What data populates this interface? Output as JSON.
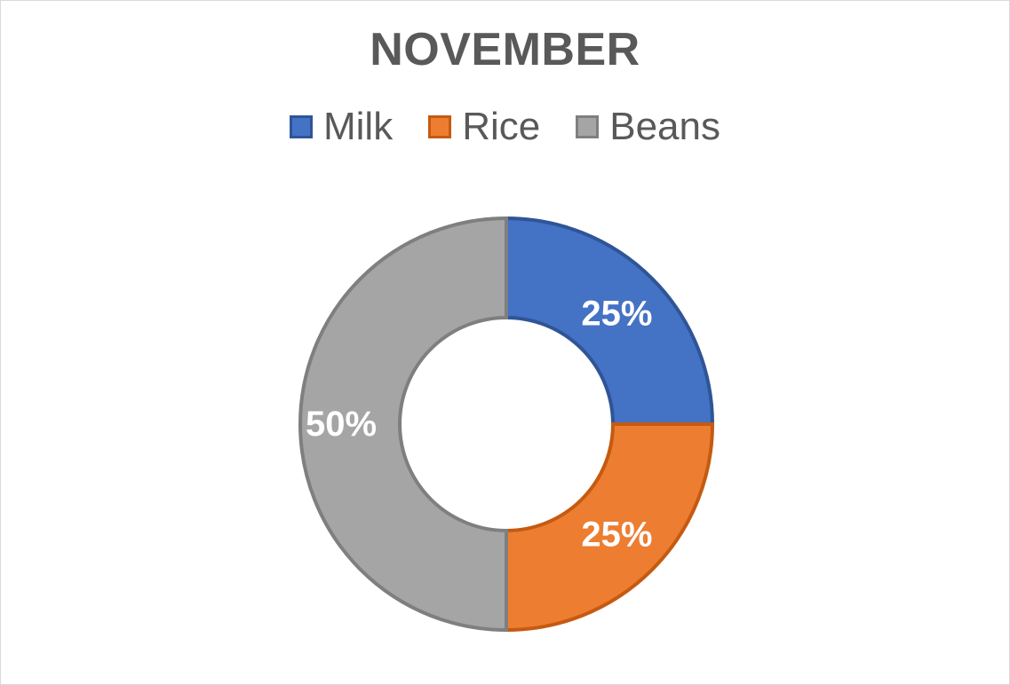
{
  "chart_data": {
    "type": "pie",
    "variant": "donut",
    "title": "NOVEMBER",
    "legend_position": "top",
    "categories": [
      "Milk",
      "Rice",
      "Beans"
    ],
    "values": [
      25,
      25,
      50
    ],
    "data_labels": [
      "25%",
      "25%",
      "50%"
    ],
    "colors": [
      "#4472c4",
      "#ed7d31",
      "#a5a5a5"
    ],
    "border_colors": [
      "#2f5597",
      "#c55a11",
      "#7f7f7f"
    ]
  }
}
